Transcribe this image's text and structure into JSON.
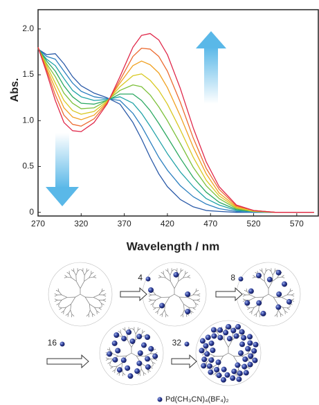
{
  "chart_data": {
    "type": "line",
    "xlabel": "Wavelength / nm",
    "ylabel": "Abs.",
    "xlim": [
      270,
      595
    ],
    "ylim": [
      -0.04,
      2.21
    ],
    "xticks": [
      270,
      320,
      370,
      420,
      470,
      520,
      570
    ],
    "yticks": [
      0,
      0.5,
      {
        "value": 1.0,
        "label": "1.0"
      },
      1.5,
      {
        "value": 2.0,
        "label": "2.0"
      }
    ],
    "grid": false,
    "x": [
      270,
      280,
      290,
      300,
      310,
      320,
      335,
      350,
      365,
      380,
      390,
      400,
      410,
      420,
      435,
      450,
      465,
      480,
      500,
      520,
      545,
      590
    ],
    "series": [
      {
        "color": "#2a5aa8",
        "values": [
          1.78,
          1.72,
          1.73,
          1.62,
          1.48,
          1.38,
          1.3,
          1.25,
          1.18,
          0.98,
          0.8,
          0.6,
          0.42,
          0.28,
          0.14,
          0.06,
          0.02,
          0.01,
          0,
          0,
          0,
          0
        ]
      },
      {
        "color": "#2b7fbf",
        "values": [
          1.78,
          1.7,
          1.67,
          1.54,
          1.41,
          1.32,
          1.26,
          1.24,
          1.22,
          1.08,
          0.94,
          0.77,
          0.6,
          0.46,
          0.29,
          0.17,
          0.09,
          0.04,
          0.01,
          0,
          0,
          0
        ]
      },
      {
        "color": "#22a3a8",
        "values": [
          1.78,
          1.67,
          1.6,
          1.46,
          1.33,
          1.26,
          1.22,
          1.23,
          1.26,
          1.19,
          1.08,
          0.94,
          0.79,
          0.64,
          0.44,
          0.28,
          0.15,
          0.08,
          0.02,
          0.01,
          0,
          0
        ]
      },
      {
        "color": "#2aa860",
        "values": [
          1.79,
          1.65,
          1.54,
          1.38,
          1.26,
          1.19,
          1.18,
          1.22,
          1.29,
          1.29,
          1.22,
          1.11,
          0.97,
          0.82,
          0.59,
          0.38,
          0.22,
          0.11,
          0.03,
          0.01,
          0,
          0
        ]
      },
      {
        "color": "#7cc03a",
        "values": [
          1.79,
          1.62,
          1.48,
          1.3,
          1.19,
          1.13,
          1.14,
          1.22,
          1.33,
          1.39,
          1.37,
          1.28,
          1.15,
          1.0,
          0.75,
          0.49,
          0.29,
          0.15,
          0.04,
          0.01,
          0,
          0
        ]
      },
      {
        "color": "#d8c820",
        "values": [
          1.79,
          1.6,
          1.41,
          1.22,
          1.11,
          1.07,
          1.1,
          1.21,
          1.37,
          1.49,
          1.51,
          1.44,
          1.33,
          1.18,
          0.9,
          0.6,
          0.35,
          0.18,
          0.05,
          0.01,
          0,
          0
        ]
      },
      {
        "color": "#f0a020",
        "values": [
          1.8,
          1.57,
          1.35,
          1.14,
          1.04,
          1.01,
          1.06,
          1.2,
          1.41,
          1.6,
          1.65,
          1.61,
          1.52,
          1.36,
          1.05,
          0.71,
          0.42,
          0.21,
          0.06,
          0.02,
          0,
          0
        ]
      },
      {
        "color": "#ec6a30",
        "values": [
          1.8,
          1.55,
          1.28,
          1.06,
          0.96,
          0.94,
          1.02,
          1.19,
          1.44,
          1.7,
          1.79,
          1.78,
          1.7,
          1.54,
          1.2,
          0.81,
          0.48,
          0.25,
          0.07,
          0.02,
          0,
          0
        ]
      },
      {
        "color": "#e0284a",
        "values": [
          1.8,
          1.52,
          1.22,
          0.98,
          0.89,
          0.88,
          0.98,
          1.18,
          1.48,
          1.8,
          1.93,
          1.95,
          1.88,
          1.72,
          1.35,
          0.92,
          0.55,
          0.28,
          0.08,
          0.02,
          0,
          0
        ]
      }
    ]
  },
  "diagram": {
    "steps": [
      "4",
      "8",
      "16",
      "32"
    ],
    "legend": "Pd(CH₃CN)₄(BF₄)₂"
  }
}
